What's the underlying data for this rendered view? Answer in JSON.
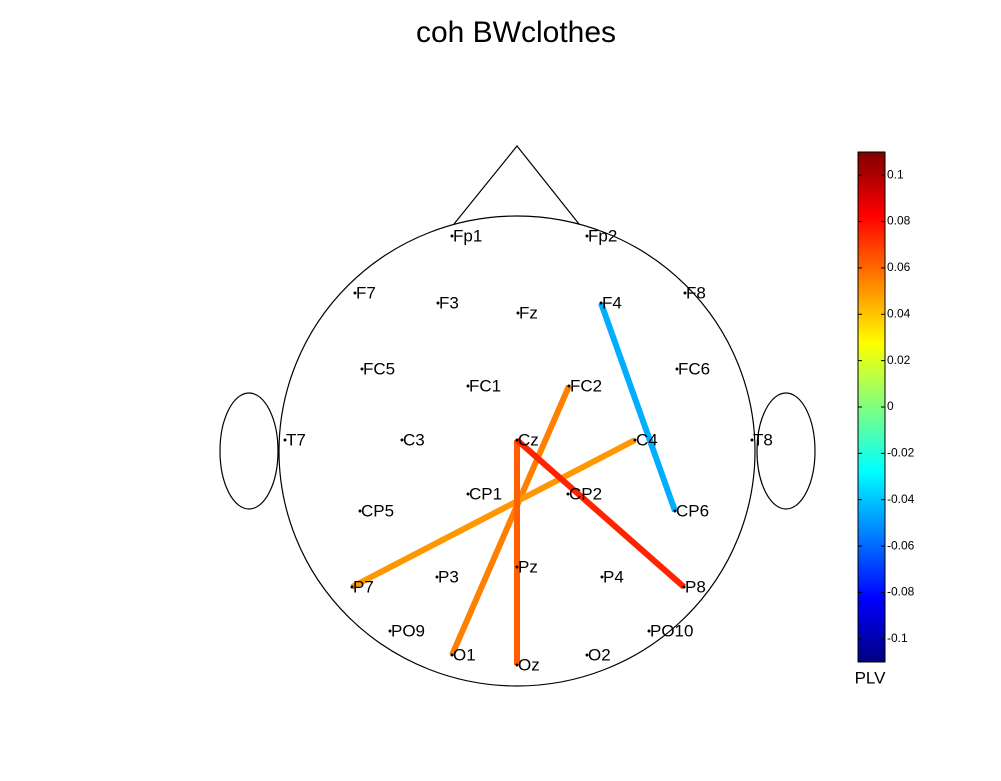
{
  "chart_data": {
    "type": "topoplot",
    "title": "coh BWclothes",
    "colorbar_label": "PLV",
    "colormap": "jet",
    "clim": [
      -0.11,
      0.11
    ],
    "cticks": [
      0.1,
      0.08,
      0.06,
      0.04,
      0.02,
      0,
      -0.02,
      -0.04,
      -0.06,
      -0.08,
      -0.1
    ],
    "electrodes": [
      "Fp1",
      "Fp2",
      "F7",
      "F3",
      "Fz",
      "F4",
      "F8",
      "FC5",
      "FC1",
      "FC2",
      "FC6",
      "T7",
      "C3",
      "Cz",
      "C4",
      "T8",
      "CP5",
      "CP1",
      "CP2",
      "CP6",
      "P7",
      "P3",
      "Pz",
      "P4",
      "P8",
      "PO9",
      "PO10",
      "O1",
      "Oz",
      "O2"
    ],
    "connections": [
      {
        "from": "F4",
        "to": "CP6",
        "value": -0.045
      },
      {
        "from": "O1",
        "to": "FC2",
        "value": 0.055
      },
      {
        "from": "P7",
        "to": "C4",
        "value": 0.05
      },
      {
        "from": "Cz",
        "to": "Oz",
        "value": 0.062
      },
      {
        "from": "Cz",
        "to": "P8",
        "value": 0.075
      }
    ]
  }
}
